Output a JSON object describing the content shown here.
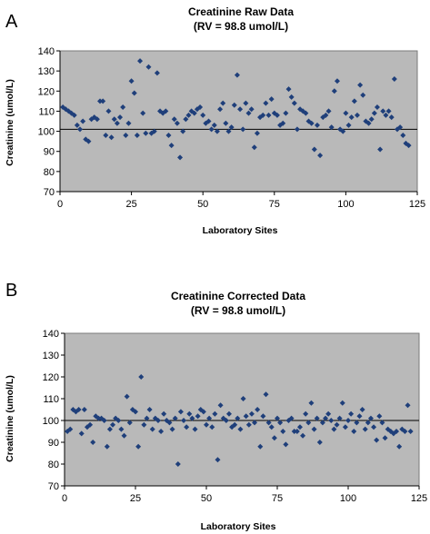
{
  "chart_data": [
    {
      "type": "scatter",
      "panel_label": "A",
      "title": "Creatinine Raw Data",
      "subtitle": "(RV = 98.8 umol/L)",
      "xlabel": "Laboratory Sites",
      "ylabel": "Creatinine (umol/L)",
      "xlim": [
        0,
        125
      ],
      "ylim": [
        70,
        140
      ],
      "xticks": [
        0,
        25,
        50,
        75,
        100,
        125
      ],
      "yticks": [
        70,
        80,
        90,
        100,
        110,
        120,
        130,
        140
      ],
      "reference_line": 101,
      "grid": false,
      "background_color": "#b9b9b9",
      "marker_color": "#1f3f7a",
      "series": [
        {
          "x": [
            1,
            2,
            3,
            4,
            5,
            6,
            7,
            8,
            9,
            10,
            11,
            12,
            13,
            14,
            15,
            16,
            17,
            18,
            19,
            20,
            21,
            22,
            23,
            24,
            25,
            26,
            27,
            28,
            29,
            30,
            31,
            32,
            33,
            34,
            35,
            36,
            37,
            38,
            39,
            40,
            41,
            42,
            43,
            44,
            45,
            46,
            47,
            48,
            49,
            50,
            51,
            52,
            53,
            54,
            55,
            56,
            57,
            58,
            59,
            60,
            61,
            62,
            63,
            64,
            65,
            66,
            67,
            68,
            69,
            70,
            71,
            72,
            73,
            74,
            75,
            76,
            77,
            78,
            79,
            80,
            81,
            82,
            83,
            84,
            85,
            86,
            87,
            88,
            89,
            90,
            91,
            92,
            93,
            94,
            95,
            96,
            97,
            98,
            99,
            100,
            101,
            102,
            103,
            104,
            105,
            106,
            107,
            108,
            109,
            110,
            111,
            112,
            113,
            114,
            115,
            116,
            117,
            118,
            119,
            120,
            121,
            122
          ],
          "y": [
            112,
            111,
            110,
            109,
            108,
            103,
            101,
            105,
            96,
            95,
            106,
            107,
            106,
            115,
            115,
            98,
            110,
            97,
            106,
            104,
            107,
            112,
            98,
            104,
            125,
            119,
            98,
            135,
            109,
            99,
            132,
            99,
            100,
            129,
            110,
            109,
            110,
            98,
            93,
            106,
            104,
            87,
            100,
            106,
            108,
            110,
            109,
            111,
            112,
            108,
            104,
            105,
            101,
            103,
            100,
            111,
            114,
            104,
            100,
            102,
            113,
            128,
            111,
            101,
            114,
            109,
            111,
            92,
            99,
            107,
            108,
            114,
            108,
            116,
            109,
            108,
            103,
            104,
            109,
            121,
            117,
            114,
            101,
            111,
            110,
            109,
            105,
            104,
            91,
            103,
            88,
            107,
            108,
            110,
            102,
            120,
            125,
            101,
            100,
            109,
            103,
            107,
            115,
            108,
            123,
            118,
            105,
            104,
            106,
            109,
            112,
            91,
            110,
            108,
            110,
            107,
            126,
            101,
            102,
            98,
            94,
            93
          ]
        }
      ]
    },
    {
      "type": "scatter",
      "panel_label": "B",
      "title": "Creatinine Corrected Data",
      "subtitle": "(RV = 98.8 umol/L)",
      "xlabel": "Laboratory Sites",
      "ylabel": "Creatinine (umol/L)",
      "xlim": [
        0,
        125
      ],
      "ylim": [
        70,
        140
      ],
      "xticks": [
        0,
        25,
        50,
        75,
        100,
        125
      ],
      "yticks": [
        70,
        80,
        90,
        100,
        110,
        120,
        130,
        140
      ],
      "reference_line": 100,
      "grid": false,
      "background_color": "#b9b9b9",
      "marker_color": "#1f3f7a",
      "series": [
        {
          "x": [
            1,
            2,
            3,
            4,
            5,
            6,
            7,
            8,
            9,
            10,
            11,
            12,
            13,
            14,
            15,
            16,
            17,
            18,
            19,
            20,
            21,
            22,
            23,
            24,
            25,
            26,
            27,
            28,
            29,
            30,
            31,
            32,
            33,
            34,
            35,
            36,
            37,
            38,
            39,
            40,
            41,
            42,
            43,
            44,
            45,
            46,
            47,
            48,
            49,
            50,
            51,
            52,
            53,
            54,
            55,
            56,
            57,
            58,
            59,
            60,
            61,
            62,
            63,
            64,
            65,
            66,
            67,
            68,
            69,
            70,
            71,
            72,
            73,
            74,
            75,
            76,
            77,
            78,
            79,
            80,
            81,
            82,
            83,
            84,
            85,
            86,
            87,
            88,
            89,
            90,
            91,
            92,
            93,
            94,
            95,
            96,
            97,
            98,
            99,
            100,
            101,
            102,
            103,
            104,
            105,
            106,
            107,
            108,
            109,
            110,
            111,
            112,
            113,
            114,
            115,
            116,
            117,
            118,
            119,
            120,
            121,
            122
          ],
          "y": [
            95,
            96,
            105,
            104,
            105,
            94,
            105,
            97,
            98,
            90,
            102,
            101,
            101,
            100,
            88,
            96,
            98,
            101,
            100,
            96,
            93,
            111,
            99,
            105,
            104,
            88,
            120,
            98,
            101,
            105,
            96,
            101,
            100,
            95,
            103,
            100,
            99,
            96,
            101,
            80,
            104,
            100,
            97,
            103,
            101,
            96,
            102,
            105,
            104,
            98,
            101,
            97,
            103,
            82,
            107,
            101,
            100,
            103,
            97,
            98,
            101,
            96,
            110,
            102,
            98,
            103,
            99,
            105,
            88,
            102,
            112,
            99,
            97,
            92,
            101,
            99,
            95,
            89,
            100,
            101,
            95,
            95,
            97,
            93,
            103,
            99,
            108,
            96,
            101,
            90,
            99,
            101,
            103,
            100,
            96,
            98,
            101,
            108,
            97,
            100,
            103,
            95,
            99,
            102,
            105,
            96,
            99,
            101,
            97,
            91,
            102,
            99,
            92,
            96,
            95,
            94,
            95,
            88,
            96,
            95,
            107,
            95
          ]
        }
      ]
    }
  ]
}
